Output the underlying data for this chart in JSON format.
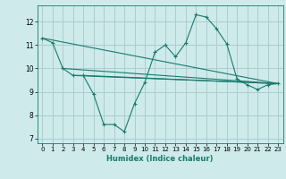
{
  "title": "",
  "xlabel": "Humidex (Indice chaleur)",
  "background_color": "#ceeaea",
  "grid_color": "#aacece",
  "line_color": "#1a7a6e",
  "xlim": [
    -0.5,
    23.5
  ],
  "ylim": [
    6.8,
    12.7
  ],
  "yticks": [
    7,
    8,
    9,
    10,
    11,
    12
  ],
  "xticks": [
    0,
    1,
    2,
    3,
    4,
    5,
    6,
    7,
    8,
    9,
    10,
    11,
    12,
    13,
    14,
    15,
    16,
    17,
    18,
    19,
    20,
    21,
    22,
    23
  ],
  "main_line_x": [
    0,
    1,
    2,
    3,
    4,
    5,
    6,
    7,
    8,
    9,
    10,
    11,
    12,
    13,
    14,
    15,
    16,
    17,
    18,
    19,
    20,
    21,
    22,
    23
  ],
  "main_line_y": [
    11.3,
    11.1,
    10.0,
    9.7,
    9.7,
    8.9,
    7.6,
    7.6,
    7.3,
    8.5,
    9.4,
    10.7,
    11.0,
    10.5,
    11.1,
    12.3,
    12.2,
    11.7,
    11.05,
    9.55,
    9.3,
    9.1,
    9.3,
    9.35
  ],
  "trend_lines": [
    {
      "x": [
        0,
        23
      ],
      "y": [
        11.3,
        9.35
      ]
    },
    {
      "x": [
        2,
        23
      ],
      "y": [
        10.0,
        9.35
      ]
    },
    {
      "x": [
        3,
        23
      ],
      "y": [
        9.7,
        9.35
      ]
    },
    {
      "x": [
        4,
        23
      ],
      "y": [
        9.7,
        9.35
      ]
    }
  ]
}
